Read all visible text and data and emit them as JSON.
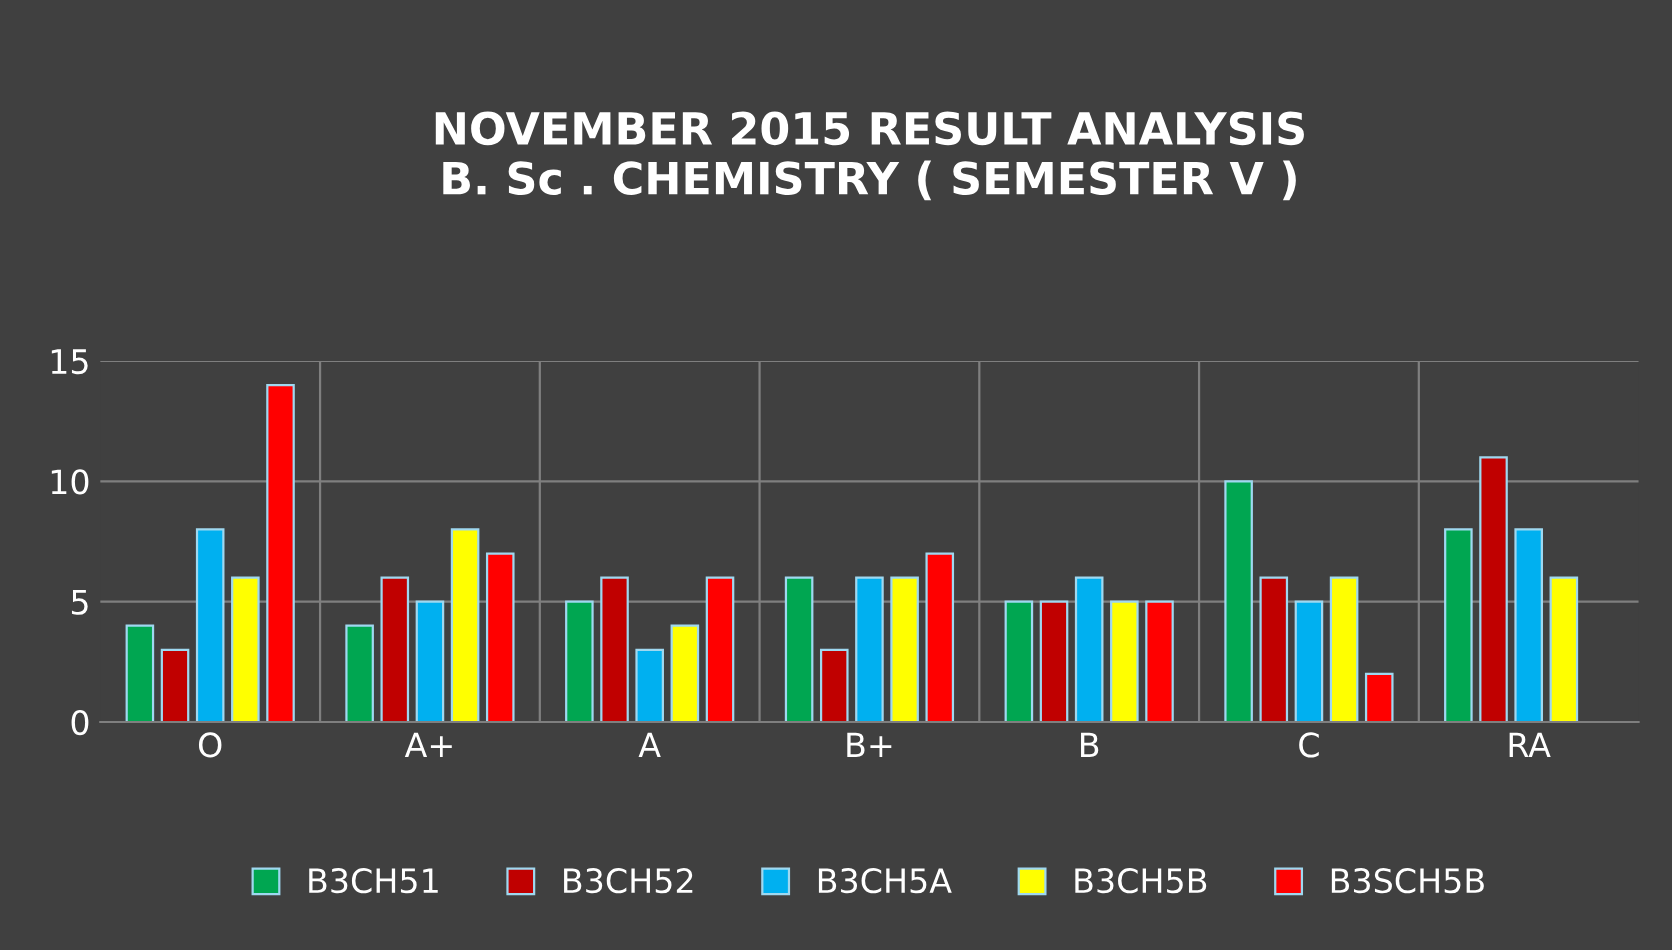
{
  "chart_data": {
    "type": "bar",
    "title": "NOVEMBER 2015 RESULT ANALYSIS\nB. Sc . CHEMISTRY ( SEMESTER V )",
    "categories": [
      "O",
      "A+",
      "A",
      "B+",
      "B",
      "C",
      "RA"
    ],
    "series": [
      {
        "name": "B3CH51",
        "color": "#00a651",
        "values": [
          4,
          4,
          5,
          6,
          5,
          10,
          8
        ]
      },
      {
        "name": "B3CH52",
        "color": "#c00000",
        "values": [
          3,
          6,
          6,
          3,
          5,
          6,
          11
        ]
      },
      {
        "name": "B3CH5A",
        "color": "#00b0f0",
        "values": [
          8,
          5,
          3,
          6,
          6,
          5,
          8
        ]
      },
      {
        "name": "B3CH5B",
        "color": "#ffff00",
        "values": [
          6,
          8,
          4,
          6,
          5,
          6,
          6
        ]
      },
      {
        "name": "B3SCH5B",
        "color": "#ff0000",
        "values": [
          14,
          7,
          6,
          7,
          5,
          2,
          null
        ]
      }
    ],
    "ylim": [
      0,
      15
    ],
    "yticks": [
      0,
      5,
      10,
      15
    ],
    "grid": true,
    "legend": "bottom"
  }
}
